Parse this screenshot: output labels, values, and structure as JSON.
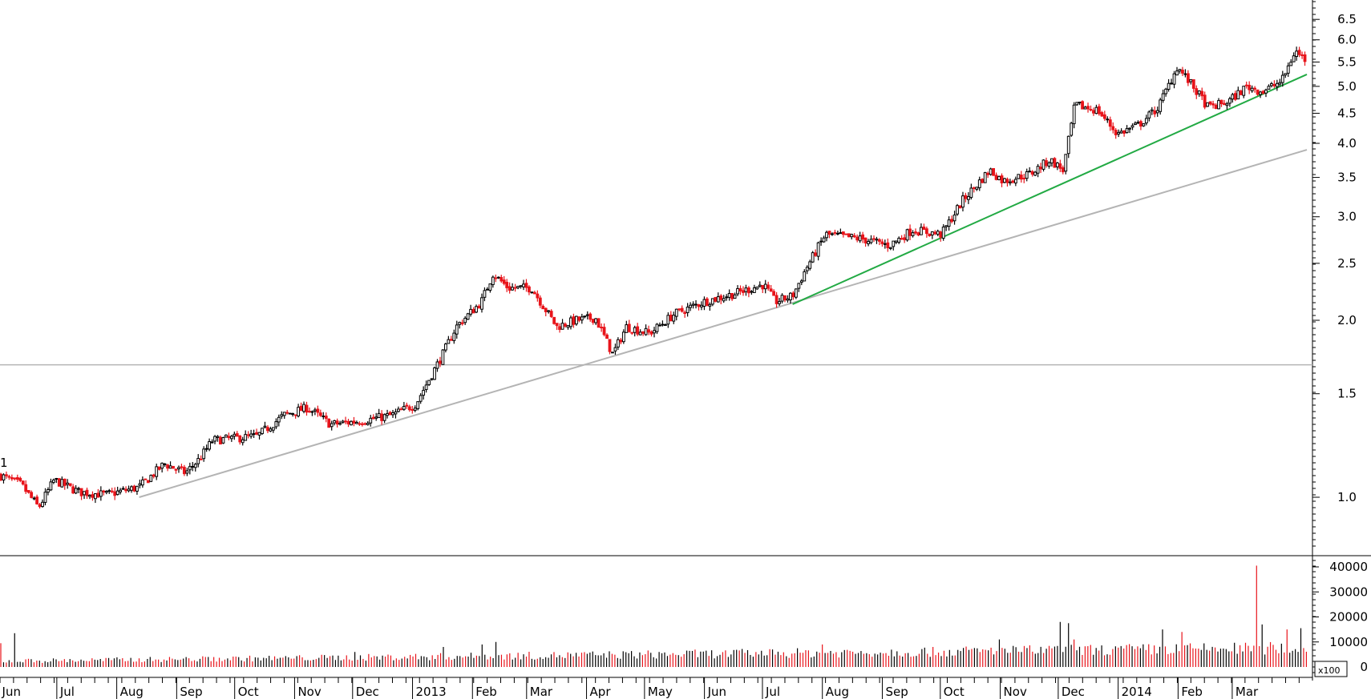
{
  "chart_data": [
    {
      "type": "candlestick",
      "scale": "log",
      "ylim": [
        0.8,
        7.0
      ],
      "y_ticks": [
        "6.5",
        "6.0",
        "5.5",
        "5.0",
        "4.5",
        "4.0",
        "3.5",
        "3.0",
        "2.5",
        "2.0",
        "1.5",
        "1.0"
      ],
      "x_ticks": [
        "Jun",
        "Jul",
        "Aug",
        "Sep",
        "Oct",
        "Nov",
        "Dec",
        "2013",
        "Feb",
        "Mar",
        "Apr",
        "May",
        "Jun",
        "Jul",
        "Aug",
        "Sep",
        "Oct",
        "Nov",
        "Dec",
        "2014",
        "Feb",
        "Mar"
      ],
      "corner_marker": "1",
      "up_color": "#000000",
      "down_color": "#e8141b",
      "price_path": [
        [
          "2012-05-21",
          1.09
        ],
        [
          "2012-06-01",
          1.05
        ],
        [
          "2012-06-10",
          0.96
        ],
        [
          "2012-06-18",
          1.07
        ],
        [
          "2012-07-01",
          1.02
        ],
        [
          "2012-07-15",
          1.01
        ],
        [
          "2012-08-01",
          1.04
        ],
        [
          "2012-08-14",
          1.14
        ],
        [
          "2012-08-25",
          1.1
        ],
        [
          "2012-09-01",
          1.16
        ],
        [
          "2012-09-08",
          1.25
        ],
        [
          "2012-10-01",
          1.27
        ],
        [
          "2012-10-15",
          1.38
        ],
        [
          "2012-10-27",
          1.42
        ],
        [
          "2012-11-08",
          1.33
        ],
        [
          "2012-11-25",
          1.35
        ],
        [
          "2012-12-10",
          1.38
        ],
        [
          "2012-12-22",
          1.44
        ],
        [
          "2013-01-05",
          1.75
        ],
        [
          "2013-01-12",
          1.95
        ],
        [
          "2013-01-25",
          2.15
        ],
        [
          "2013-01-31",
          2.4
        ],
        [
          "2013-02-08",
          2.27
        ],
        [
          "2013-02-20",
          2.27
        ],
        [
          "2013-03-05",
          1.95
        ],
        [
          "2013-03-15",
          2.0
        ],
        [
          "2013-03-25",
          2.02
        ],
        [
          "2013-04-03",
          1.75
        ],
        [
          "2013-04-10",
          1.95
        ],
        [
          "2013-04-22",
          1.9
        ],
        [
          "2013-05-05",
          2.05
        ],
        [
          "2013-05-20",
          2.15
        ],
        [
          "2013-06-05",
          2.22
        ],
        [
          "2013-06-20",
          2.3
        ],
        [
          "2013-06-26",
          2.15
        ],
        [
          "2013-07-05",
          2.2
        ],
        [
          "2013-07-12",
          2.45
        ],
        [
          "2013-07-22",
          2.8
        ],
        [
          "2013-08-10",
          2.75
        ],
        [
          "2013-08-24",
          2.68
        ],
        [
          "2013-09-05",
          2.85
        ],
        [
          "2013-09-20",
          2.8
        ],
        [
          "2013-10-01",
          3.2
        ],
        [
          "2013-10-15",
          3.6
        ],
        [
          "2013-10-22",
          3.45
        ],
        [
          "2013-11-05",
          3.55
        ],
        [
          "2013-11-15",
          3.75
        ],
        [
          "2013-11-22",
          3.6
        ],
        [
          "2013-11-28",
          4.65
        ],
        [
          "2013-12-10",
          4.55
        ],
        [
          "2013-12-20",
          4.15
        ],
        [
          "2013-12-31",
          4.3
        ],
        [
          "2014-01-10",
          4.6
        ],
        [
          "2014-01-20",
          5.4
        ],
        [
          "2014-01-28",
          5.0
        ],
        [
          "2014-02-05",
          4.6
        ],
        [
          "2014-02-15",
          4.7
        ],
        [
          "2014-02-25",
          5.0
        ],
        [
          "2014-03-05",
          4.9
        ],
        [
          "2014-03-15",
          5.1
        ],
        [
          "2014-03-22",
          5.75
        ],
        [
          "2014-03-27",
          5.55
        ]
      ],
      "support_lines": [
        {
          "points": [
            [
              "2012-08-01",
              1.0
            ],
            [
              "2014-03-28",
              3.9
            ]
          ],
          "color": "#b4b4b4"
        },
        {
          "points": [
            [
              "2013-07-05",
              2.13
            ],
            [
              "2014-03-28",
              5.24
            ]
          ],
          "color": "#22aa44"
        }
      ],
      "horizontal_lines": [
        {
          "value": 1.68,
          "color": "#b4b4b4"
        }
      ]
    },
    {
      "type": "bar",
      "multiplier_label": "x100",
      "ylim": [
        0,
        42000
      ],
      "y_ticks": [
        "40000",
        "30000",
        "20000",
        "10000",
        "0"
      ],
      "spikes": [
        [
          "2012-05-21",
          9500
        ],
        [
          "2012-05-29",
          13500
        ],
        [
          "2012-09-05",
          4000
        ],
        [
          "2012-11-20",
          6000
        ],
        [
          "2013-01-05",
          8000
        ],
        [
          "2013-01-25",
          9000
        ],
        [
          "2013-02-01",
          10000
        ],
        [
          "2013-06-25",
          7000
        ],
        [
          "2013-07-20",
          9000
        ],
        [
          "2013-09-15",
          8000
        ],
        [
          "2013-10-20",
          11000
        ],
        [
          "2013-11-20",
          18000
        ],
        [
          "2013-11-25",
          17500
        ],
        [
          "2013-11-28",
          11000
        ],
        [
          "2014-01-13",
          15000
        ],
        [
          "2014-01-23",
          14000
        ],
        [
          "2014-03-02",
          40500
        ],
        [
          "2014-03-05",
          17000
        ],
        [
          "2014-03-18",
          15000
        ],
        [
          "2014-03-25",
          15500
        ]
      ]
    }
  ]
}
